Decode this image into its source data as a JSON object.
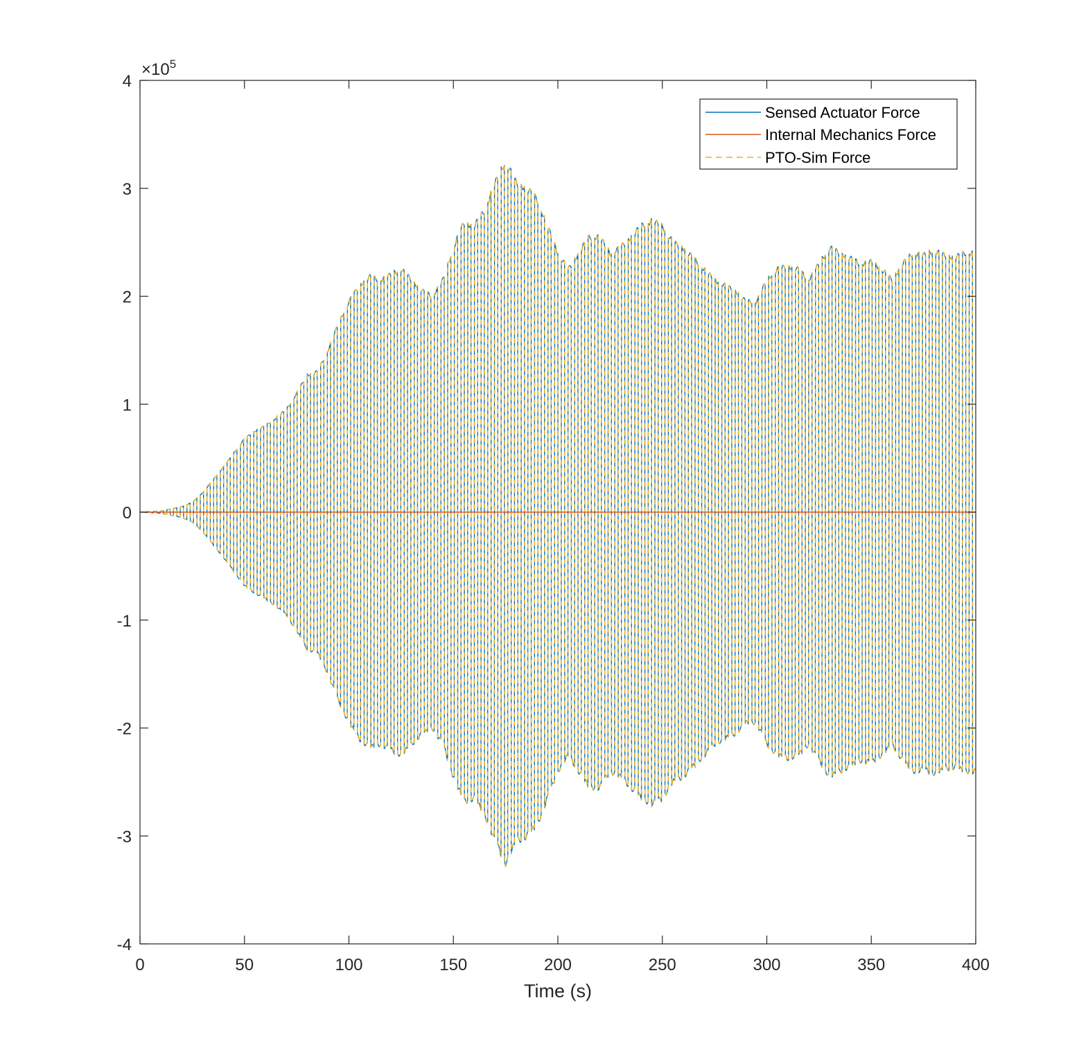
{
  "chart_data": {
    "type": "line",
    "title": "",
    "xlabel": "Time (s)",
    "ylabel": "",
    "xlim": [
      0,
      400
    ],
    "ylim": [
      -400000,
      400000
    ],
    "x_ticks": [
      "0",
      "50",
      "100",
      "150",
      "200",
      "250",
      "300",
      "350",
      "400"
    ],
    "y_ticks": [
      "-4",
      "-3",
      "-2",
      "-1",
      "0",
      "1",
      "2",
      "3",
      "4"
    ],
    "y_exponent_label": {
      "prefix": "×10",
      "power": "5"
    },
    "grid": false,
    "legend_position": "top-right",
    "colors": {
      "sensed": "#0072BD",
      "internal": "#D95319",
      "pto": "#EDB120",
      "axis": "#262626"
    },
    "series": [
      {
        "name": "Sensed Actuator Force",
        "style": "solid"
      },
      {
        "name": "Internal Mechanics Force",
        "style": "solid"
      },
      {
        "name": "PTO-Sim Force",
        "style": "dashed"
      }
    ],
    "oscillation_period_s": 3.2,
    "envelope": {
      "t": [
        0,
        10,
        20,
        25,
        30,
        35,
        40,
        45,
        50,
        55,
        60,
        65,
        70,
        75,
        80,
        85,
        90,
        95,
        100,
        105,
        110,
        115,
        120,
        125,
        130,
        135,
        140,
        145,
        150,
        155,
        160,
        165,
        170,
        175,
        180,
        185,
        190,
        195,
        200,
        205,
        210,
        215,
        220,
        225,
        230,
        235,
        240,
        245,
        250,
        255,
        260,
        265,
        270,
        275,
        280,
        285,
        290,
        295,
        300,
        305,
        310,
        315,
        320,
        325,
        330,
        335,
        340,
        345,
        350,
        355,
        360,
        365,
        370,
        375,
        380,
        385,
        390,
        395,
        400
      ],
      "amplitude": [
        0,
        1000,
        5000,
        9000,
        18000,
        30000,
        42000,
        55000,
        68000,
        75000,
        80000,
        87000,
        95000,
        110000,
        127000,
        130000,
        150000,
        175000,
        195000,
        210000,
        218000,
        215000,
        220000,
        225000,
        215000,
        205000,
        200000,
        215000,
        245000,
        268000,
        265000,
        280000,
        305000,
        325000,
        305000,
        300000,
        290000,
        265000,
        240000,
        225000,
        240000,
        255000,
        255000,
        240000,
        245000,
        255000,
        265000,
        270000,
        265000,
        250000,
        245000,
        235000,
        225000,
        215000,
        210000,
        205000,
        195000,
        195000,
        215000,
        225000,
        228000,
        225000,
        215000,
        230000,
        245000,
        240000,
        235000,
        230000,
        232000,
        225000,
        215000,
        230000,
        240000,
        238000,
        242000,
        238000,
        236000,
        240000,
        240000
      ]
    },
    "internal_mechanics_value": 0
  }
}
